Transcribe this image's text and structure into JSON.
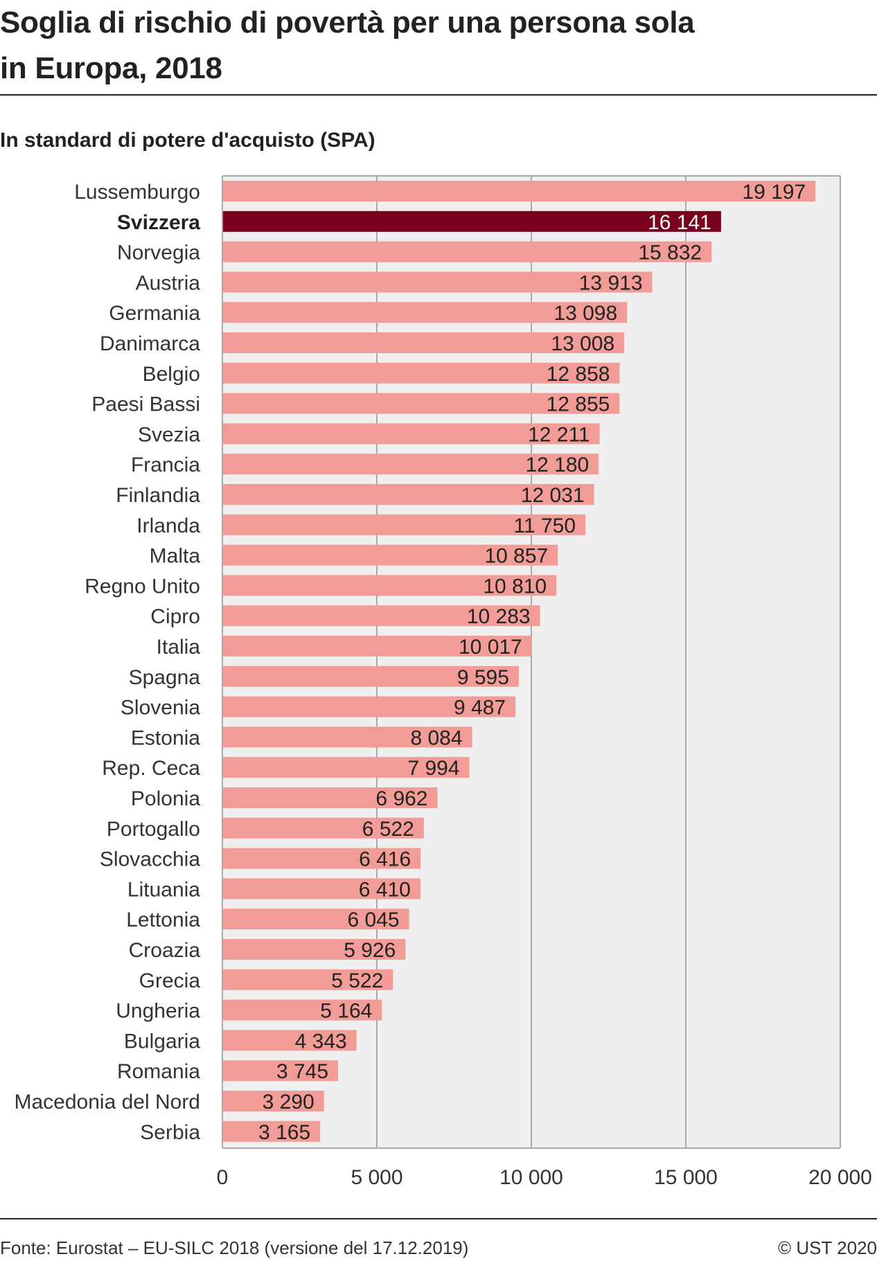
{
  "header": {
    "title_line1": "Soglia di rischio di povertà per una persona sola",
    "title_line2": "in Europa, 2018",
    "subtitle": "In standard di potere d'acquisto (SPA)"
  },
  "footer": {
    "source": "Fonte: Eurostat  – EU-SILC 2018 (versione del 17.12.2019)",
    "copyright": "© UST 2020"
  },
  "colors": {
    "bar": "#f29c97",
    "highlight": "#7a0020",
    "plot_background": "#efefef",
    "gridline": "#a9a9a9"
  },
  "chart_data": {
    "type": "bar",
    "orientation": "horizontal",
    "highlight": "Svizzera",
    "xlim": [
      0,
      20000
    ],
    "xticks": [
      0,
      5000,
      10000,
      15000,
      20000
    ],
    "xtick_labels": [
      "0",
      "5 000",
      "10 000",
      "15 000",
      "20 000"
    ],
    "grid": true,
    "categories": [
      "Lussemburgo",
      "Svizzera",
      "Norvegia",
      "Austria",
      "Germania",
      "Danimarca",
      "Belgio",
      "Paesi Bassi",
      "Svezia",
      "Francia",
      "Finlandia",
      "Irlanda",
      "Malta",
      "Regno Unito",
      "Cipro",
      "Italia",
      "Spagna",
      "Slovenia",
      "Estonia",
      "Rep. Ceca",
      "Polonia",
      "Portogallo",
      "Slovacchia",
      "Lituania",
      "Lettonia",
      "Croazia",
      "Grecia",
      "Ungheria",
      "Bulgaria",
      "Romania",
      "Macedonia del Nord",
      "Serbia"
    ],
    "values": [
      19197,
      16141,
      15832,
      13913,
      13098,
      13008,
      12858,
      12855,
      12211,
      12180,
      12031,
      11750,
      10857,
      10810,
      10283,
      10017,
      9595,
      9487,
      8084,
      7994,
      6962,
      6522,
      6416,
      6410,
      6045,
      5926,
      5522,
      5164,
      4343,
      3745,
      3290,
      3165
    ],
    "value_labels": [
      "19 197",
      "16 141",
      "15 832",
      "13 913",
      "13 098",
      "13 008",
      "12 858",
      "12 855",
      "12 211",
      "12 180",
      "12 031",
      "11 750",
      "10 857",
      "10 810",
      "10 283",
      "10 017",
      "9 595",
      "9 487",
      "8 084",
      "7 994",
      "6 962",
      "6 522",
      "6 416",
      "6 410",
      "6 045",
      "5 926",
      "5 522",
      "5 164",
      "4 343",
      "3 745",
      "3 290",
      "3 165"
    ]
  }
}
